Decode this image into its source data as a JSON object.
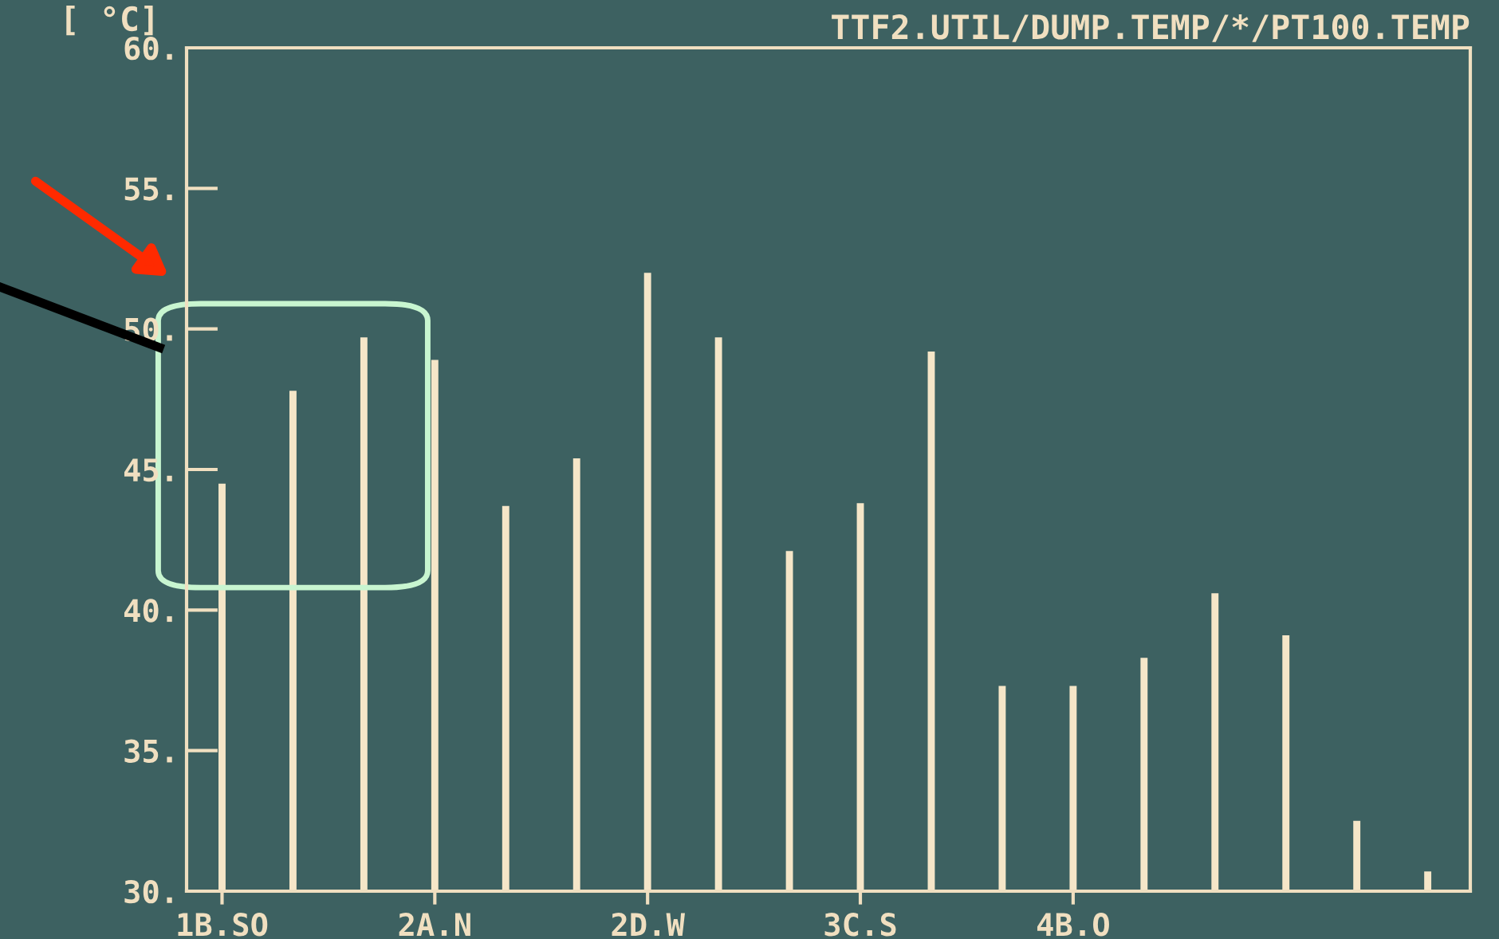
{
  "chart_data": {
    "type": "bar",
    "title": "TTF2.UTIL/DUMP.TEMP/*/PT100.TEMP",
    "ylabel": "[ °C]",
    "categories": [
      "1B.SO",
      null,
      null,
      "2A.N",
      null,
      null,
      "2D.W",
      null,
      null,
      "3C.S",
      null,
      null,
      "4B.O",
      null,
      null,
      null,
      null,
      null
    ],
    "values": [
      44.5,
      47.8,
      49.7,
      48.9,
      43.7,
      45.4,
      52.0,
      49.7,
      42.1,
      43.8,
      49.2,
      37.3,
      37.3,
      38.3,
      40.6,
      39.1,
      32.5,
      30.7
    ],
    "color": "#f5e6c8",
    "ylim": [
      30,
      60
    ],
    "yticks": [
      {
        "value": 30,
        "label": "30."
      },
      {
        "value": 35,
        "label": "35."
      },
      {
        "value": 40,
        "label": "40."
      },
      {
        "value": 45,
        "label": "45."
      },
      {
        "value": 50,
        "label": "50."
      },
      {
        "value": 55,
        "label": "55."
      },
      {
        "value": 60,
        "label": "60."
      }
    ],
    "grid": false,
    "legend": false
  }
}
